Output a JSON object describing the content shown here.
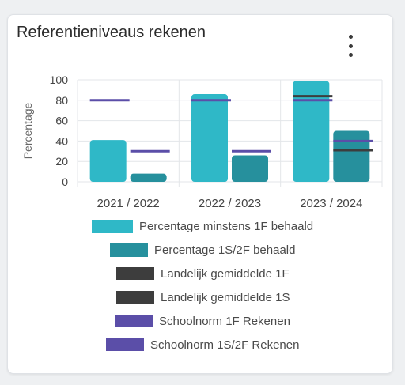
{
  "card": {
    "title": "Referentieniveaus rekenen",
    "menu_icon": "more-vertical-icon"
  },
  "chart_data": {
    "type": "bar",
    "ylabel": "Percentage",
    "ylim": [
      0,
      100
    ],
    "yticks": [
      0,
      20,
      40,
      60,
      80,
      100
    ],
    "categories": [
      "2021 / 2022",
      "2022 / 2023",
      "2023 / 2024"
    ],
    "grid": true,
    "legend_position": "bottom",
    "series": [
      {
        "name": "Percentage minstens 1F behaald",
        "kind": "bar",
        "color": "#2fb8c7",
        "values": [
          41,
          86,
          99
        ]
      },
      {
        "name": "Percentage 1S/2F behaald",
        "kind": "bar",
        "color": "#26909d",
        "values": [
          8,
          26,
          50
        ]
      },
      {
        "name": "Landelijk gemiddelde 1F",
        "kind": "line",
        "color": "#3d3d3d",
        "values": [
          null,
          null,
          84
        ]
      },
      {
        "name": "Landelijk gemiddelde 1S",
        "kind": "line",
        "color": "#3d3d3d",
        "values": [
          null,
          null,
          31
        ]
      },
      {
        "name": "Schoolnorm 1F Rekenen",
        "kind": "line",
        "color": "#5b4ea8",
        "values": [
          80,
          80,
          80
        ]
      },
      {
        "name": "Schoolnorm 1S/2F Rekenen",
        "kind": "line",
        "color": "#5b4ea8",
        "values": [
          30,
          30,
          40
        ]
      }
    ]
  }
}
